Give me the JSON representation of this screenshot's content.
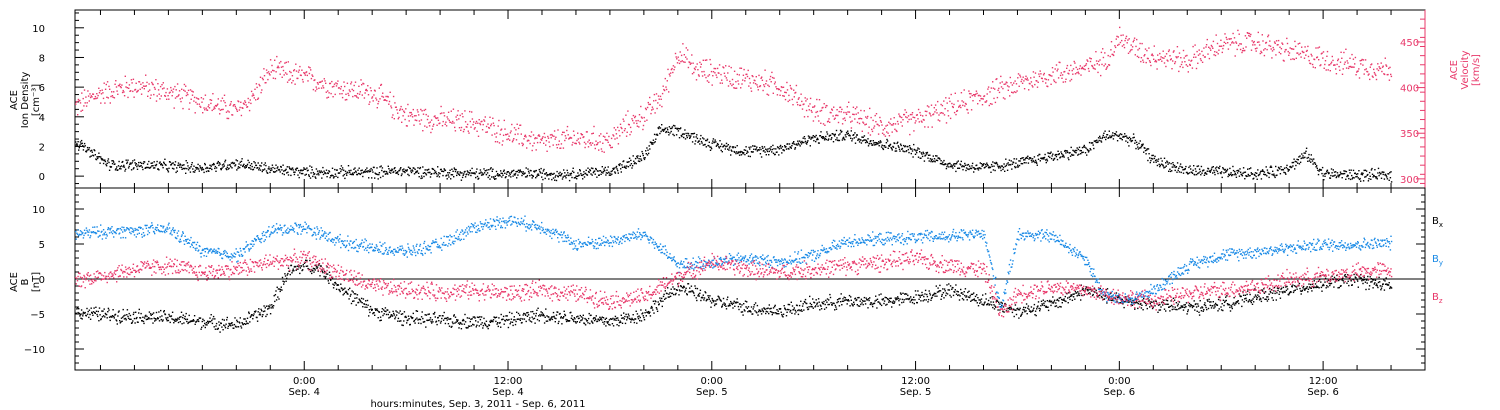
{
  "colors": {
    "black": "#000000",
    "pink": "#e8386a",
    "blue": "#1a8ae6",
    "axis": "#000000"
  },
  "footer": {
    "xlabel": "hours:minutes, Sep.  3, 2011 - Sep.  6, 2011"
  },
  "chart_data": [
    {
      "type": "scatter",
      "panel": "top",
      "x_unit": "hours since 2011-09-03 00:00",
      "xlim": [
        10.5,
        90
      ],
      "x_ticks": [
        {
          "x": 24,
          "label": "0:00",
          "sublabel": "Sep. 4"
        },
        {
          "x": 36,
          "label": "12:00",
          "sublabel": "Sep. 4"
        },
        {
          "x": 48,
          "label": "0:00",
          "sublabel": "Sep. 5"
        },
        {
          "x": 60,
          "label": "12:00",
          "sublabel": "Sep. 5"
        },
        {
          "x": 72,
          "label": "0:00",
          "sublabel": "Sep. 6"
        },
        {
          "x": 84,
          "label": "12:00",
          "sublabel": "Sep. 6"
        }
      ],
      "left_axis": {
        "label_lines": [
          "ACE",
          "Ion Density",
          "[cm⁻³]"
        ],
        "ylim": [
          -0.8,
          11.2
        ],
        "ticks": [
          0,
          2,
          4,
          6,
          8,
          10
        ],
        "tick_labels": [
          "0",
          "2",
          "4",
          "6",
          "8",
          "10"
        ]
      },
      "right_axis": {
        "label_lines": [
          "ACE",
          "Velocity",
          "[km/s]"
        ],
        "ylim": [
          290,
          485
        ],
        "ticks": [
          300,
          350,
          400,
          450
        ],
        "tick_labels": [
          "300",
          "350",
          "400",
          "450"
        ]
      },
      "series": [
        {
          "name": "Ion Density",
          "axis": "left",
          "color_key": "black",
          "x": [
            10.5,
            11.5,
            12.5,
            14,
            16,
            18,
            20,
            22,
            24,
            26,
            28,
            30,
            32,
            34,
            36,
            38,
            40,
            41,
            42,
            43,
            44,
            45,
            46,
            47,
            48,
            50,
            52,
            54,
            56,
            58,
            60,
            62,
            64,
            66,
            68,
            70,
            71,
            72,
            73,
            74,
            76,
            78,
            80,
            81,
            82,
            83,
            84,
            86,
            88
          ],
          "y": [
            2.4,
            1.5,
            0.8,
            0.8,
            0.7,
            0.6,
            0.9,
            0.5,
            0.3,
            0.3,
            0.3,
            0.4,
            0.3,
            0.2,
            0.2,
            0.2,
            0.2,
            0.3,
            0.4,
            0.8,
            1.4,
            3.2,
            3.1,
            2.6,
            2.2,
            1.7,
            1.9,
            2.6,
            2.8,
            2.2,
            1.7,
            0.8,
            0.6,
            0.9,
            1.4,
            1.8,
            2.7,
            2.8,
            2.3,
            1.1,
            0.4,
            0.3,
            0.2,
            0.3,
            0.7,
            1.5,
            0.2,
            0.1,
            0.1
          ]
        },
        {
          "name": "Velocity",
          "axis": "right",
          "color_key": "pink",
          "x": [
            10.5,
            12,
            14,
            16,
            18,
            20,
            21,
            22,
            24,
            26,
            28,
            30,
            32,
            34,
            36,
            38,
            40,
            42,
            43,
            44,
            45,
            46,
            47,
            48,
            50,
            52,
            54,
            56,
            58,
            60,
            62,
            64,
            66,
            68,
            70,
            71,
            72,
            73,
            74,
            76,
            78,
            80,
            82,
            84,
            86,
            88
          ],
          "y": [
            380,
            395,
            403,
            395,
            385,
            375,
            392,
            420,
            412,
            400,
            395,
            370,
            365,
            362,
            350,
            340,
            345,
            342,
            360,
            370,
            390,
            440,
            420,
            418,
            410,
            402,
            375,
            370,
            358,
            365,
            378,
            392,
            405,
            415,
            422,
            430,
            455,
            442,
            436,
            430,
            448,
            450,
            440,
            432,
            425,
            420
          ]
        }
      ]
    },
    {
      "type": "scatter",
      "panel": "bottom",
      "x_unit": "hours since 2011-09-03 00:00",
      "xlim": [
        10.5,
        90
      ],
      "left_axis": {
        "label_lines": [
          "ACE",
          "B",
          "[nT]"
        ],
        "ylim": [
          -13,
          13
        ],
        "ticks": [
          -10,
          -5,
          0,
          5,
          10
        ],
        "tick_labels": [
          "−10",
          "−5",
          "0",
          "5",
          "10"
        ]
      },
      "zero_line": true,
      "series": [
        {
          "name": "Bx",
          "label_main": "B",
          "label_sub": "x",
          "color_key": "black",
          "x": [
            10.5,
            12,
            14,
            16,
            18,
            20,
            22,
            23,
            24,
            25,
            26,
            28,
            30,
            32,
            34,
            36,
            38,
            40,
            42,
            44,
            46,
            48,
            50,
            52,
            54,
            56,
            58,
            60,
            62,
            64,
            66,
            68,
            70,
            72,
            74,
            76,
            78,
            80,
            82,
            84,
            86,
            88
          ],
          "y": [
            -4.5,
            -5,
            -5.2,
            -5.5,
            -6,
            -6.5,
            -4,
            1,
            2,
            1.5,
            -1,
            -4.5,
            -5.5,
            -5.8,
            -6,
            -5.8,
            -5,
            -5.5,
            -6,
            -5,
            -1,
            -3,
            -4,
            -4.5,
            -3.5,
            -3,
            -3.2,
            -2.5,
            -1.5,
            -3,
            -4.5,
            -3.5,
            -1.5,
            -3,
            -3.5,
            -4,
            -3.5,
            -2.5,
            -1.5,
            -0.5,
            0,
            -1
          ]
        },
        {
          "name": "By",
          "label_main": "B",
          "label_sub": "y",
          "color_key": "blue",
          "x": [
            10.5,
            12,
            14,
            16,
            18,
            20,
            22,
            24,
            26,
            28,
            30,
            32,
            34,
            36,
            38,
            40,
            42,
            44,
            46,
            48,
            50,
            52,
            54,
            56,
            58,
            60,
            62,
            64,
            65,
            66,
            68,
            70,
            71,
            72,
            73,
            74,
            76,
            78,
            80,
            82,
            84,
            86,
            88
          ],
          "y": [
            6.5,
            6.8,
            7,
            7.2,
            4,
            3.5,
            7,
            7.5,
            5.5,
            4.5,
            4,
            5,
            7.5,
            8.5,
            7.5,
            5,
            5.5,
            6.5,
            2,
            2.5,
            3,
            2.5,
            3.5,
            5.5,
            5.8,
            6,
            6.2,
            6.5,
            -4,
            6.5,
            6.2,
            3,
            -2,
            -3,
            -2.5,
            -1.5,
            2,
            3.5,
            4,
            4.5,
            5,
            5,
            5.2
          ]
        },
        {
          "name": "Bz",
          "label_main": "B",
          "label_sub": "z",
          "color_key": "pink",
          "x": [
            10.5,
            12,
            14,
            16,
            18,
            20,
            22,
            24,
            26,
            28,
            30,
            32,
            34,
            36,
            38,
            40,
            42,
            44,
            46,
            48,
            50,
            52,
            54,
            56,
            58,
            60,
            62,
            64,
            65,
            66,
            68,
            70,
            72,
            74,
            76,
            78,
            80,
            82,
            84,
            86,
            88
          ],
          "y": [
            0,
            0.5,
            1.5,
            2,
            1,
            1.5,
            2.5,
            3,
            1,
            -1,
            -1.5,
            -1.8,
            -1.5,
            -2,
            -1.5,
            -2,
            -3,
            -2.5,
            0.5,
            2.5,
            1.5,
            1,
            1.5,
            2,
            2.5,
            3,
            2,
            1.5,
            -5,
            -2,
            -1,
            -1.5,
            -2.5,
            -3,
            -2,
            -1.5,
            -1,
            0,
            0.5,
            1,
            1.5
          ]
        }
      ]
    }
  ]
}
